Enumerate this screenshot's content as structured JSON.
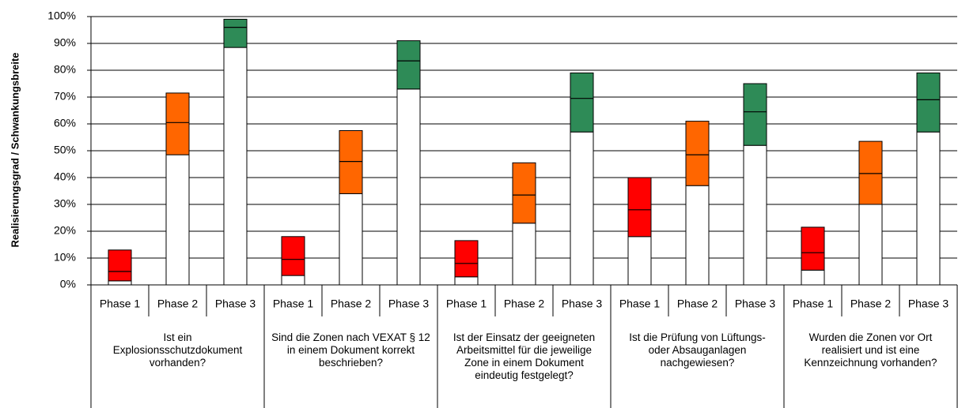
{
  "chart_data": {
    "type": "range-bar",
    "y_label": "Realisierungsgrad  / Schwankungsbreite",
    "ylim": [
      0,
      100
    ],
    "yticks": [
      {
        "value": 0,
        "label": "0%"
      },
      {
        "value": 10,
        "label": "10%"
      },
      {
        "value": 20,
        "label": "20%"
      },
      {
        "value": 30,
        "label": "30%"
      },
      {
        "value": 40,
        "label": "40%"
      },
      {
        "value": 50,
        "label": "50%"
      },
      {
        "value": 60,
        "label": "60%"
      },
      {
        "value": 70,
        "label": "70%"
      },
      {
        "value": 80,
        "label": "80%"
      },
      {
        "value": 90,
        "label": "90%"
      },
      {
        "value": 100,
        "label": "100%"
      }
    ],
    "grid": true,
    "phase_colors": [
      "#ff0000",
      "#ff6600",
      "#2e8b57"
    ],
    "groups": [
      {
        "label": "Ist ein Explosionsschutzdokument vorhanden?",
        "categories": [
          "Phase 1",
          "Phase 2",
          "Phase 3"
        ],
        "low": [
          1.5,
          48.5,
          88.5
        ],
        "mid": [
          5,
          60.5,
          96
        ],
        "high": [
          13,
          71.5,
          99
        ]
      },
      {
        "label": "Sind die Zonen nach VEXAT § 12 in einem Dokument korrekt beschrieben?",
        "categories": [
          "Phase 1",
          "Phase 2",
          "Phase 3"
        ],
        "low": [
          3.5,
          34,
          73
        ],
        "mid": [
          9.5,
          46,
          83.5
        ],
        "high": [
          18,
          57.5,
          91
        ]
      },
      {
        "label": "Ist der Einsatz der geeigneten Arbeitsmittel für die jeweilige Zone in einem Dokument eindeutig festgelegt?",
        "categories": [
          "Phase 1",
          "Phase 2",
          "Phase 3"
        ],
        "low": [
          3,
          23,
          57
        ],
        "mid": [
          8,
          33.5,
          69.5
        ],
        "high": [
          16.5,
          45.5,
          79
        ]
      },
      {
        "label": "Ist die Prüfung von Lüftungs- oder Absauganlagen nachgewiesen?",
        "categories": [
          "Phase 1",
          "Phase 2",
          "Phase 3"
        ],
        "low": [
          18,
          37,
          52
        ],
        "mid": [
          28,
          48.5,
          64.5
        ],
        "high": [
          40,
          61,
          75
        ]
      },
      {
        "label": "Wurden die Zonen vor Ort realisiert und ist eine Kennzeichnung vorhanden?",
        "categories": [
          "Phase 1",
          "Phase 2",
          "Phase 3"
        ],
        "low": [
          5.5,
          30,
          57
        ],
        "mid": [
          12,
          41.5,
          69
        ],
        "high": [
          21.5,
          53.5,
          79
        ]
      }
    ]
  }
}
